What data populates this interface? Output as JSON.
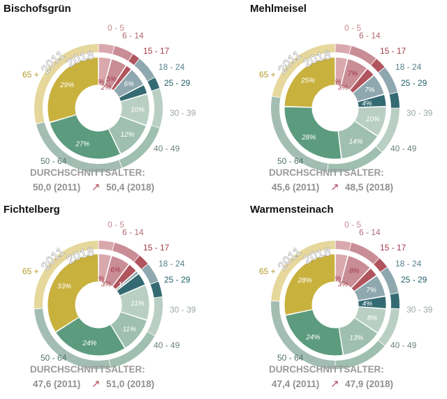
{
  "chart_data": {
    "type": "donut",
    "categories": [
      "0 - 5",
      "6 - 14",
      "15 - 17",
      "18 - 24",
      "25 - 29",
      "30 - 39",
      "40 - 49",
      "50 - 64",
      "65 +"
    ],
    "colors": {
      "0 - 5": "#d9a8ad",
      "6 - 14": "#c98d95",
      "15 - 17": "#b0545e",
      "18 - 24": "#8fa7ae",
      "25 - 29": "#346b72",
      "30 - 39": "#b9cfc4",
      "40 - 49": "#9fbfb0",
      "50 - 64": "#5c9b7e",
      "65 +": "#c9b13e",
      "outer_65": "#e6d79c",
      "outer_50_64": "#a3bdb3"
    },
    "label_colors": {
      "0 - 5": "#c98890",
      "6 - 14": "#b06b75",
      "15 - 17": "#a23a48",
      "18 - 24": "#557f8a",
      "25 - 29": "#1f5f66",
      "30 - 39": "#9aa8a2",
      "40 - 49": "#6c8579",
      "50 - 64": "#4f7466",
      "65 +": "#b39a2a"
    },
    "ring_labels": {
      "outer": "2011",
      "inner": "2018"
    },
    "avg_heading": "DURCHSCHNITTSALTER:",
    "avg_arrow": "↗",
    "panels": [
      {
        "title": "Bischofsgrün",
        "inner": [
          4,
          5,
          2,
          6,
          3,
          10,
          12,
          27,
          29
        ],
        "outer": [
          4,
          5,
          2,
          6,
          3,
          10,
          14,
          27,
          29
        ],
        "pct_labels": [
          "4%",
          "5%",
          "2%",
          "6%",
          "",
          "10%",
          "12%",
          "27%",
          "29%"
        ],
        "avg_2011": "50,0 (2011)",
        "avg_2018": "50,4 (2018)"
      },
      {
        "title": "Mehlmeisel",
        "inner": [
          4,
          7,
          3,
          7,
          4,
          10,
          14,
          28,
          25
        ],
        "outer": [
          4,
          7,
          3,
          7,
          4,
          12,
          15,
          26,
          22
        ],
        "pct_labels": [
          "4%",
          "7%",
          "3%",
          "7%",
          "4%",
          "10%",
          "14%",
          "28%",
          "25%"
        ],
        "avg_2011": "45,6 (2011)",
        "avg_2018": "48,5 (2018)"
      },
      {
        "title": "Fichtelberg",
        "inner": [
          4,
          6,
          3,
          1,
          4,
          11,
          11,
          24,
          33
        ],
        "outer": [
          4,
          7,
          3,
          5,
          4,
          10,
          14,
          27,
          26
        ],
        "pct_labels": [
          "4%",
          "6%",
          "3%",
          "1%",
          "",
          "11%",
          "11%",
          "24%",
          "33%"
        ],
        "avg_2011": "47,6 (2011)",
        "avg_2018": "51,0 (2018)"
      },
      {
        "title": "Warmensteinach",
        "inner": [
          4,
          8,
          3,
          7,
          4,
          8,
          13,
          24,
          28
        ],
        "outer": [
          4,
          8,
          3,
          7,
          4,
          10,
          14,
          26,
          24
        ],
        "pct_labels": [
          "4%",
          "8%",
          "3%",
          "7%",
          "4%",
          "8%",
          "13%",
          "24%",
          "28%"
        ],
        "avg_2011": "47,4 (2011)",
        "avg_2018": "47,9 (2018)"
      }
    ]
  }
}
